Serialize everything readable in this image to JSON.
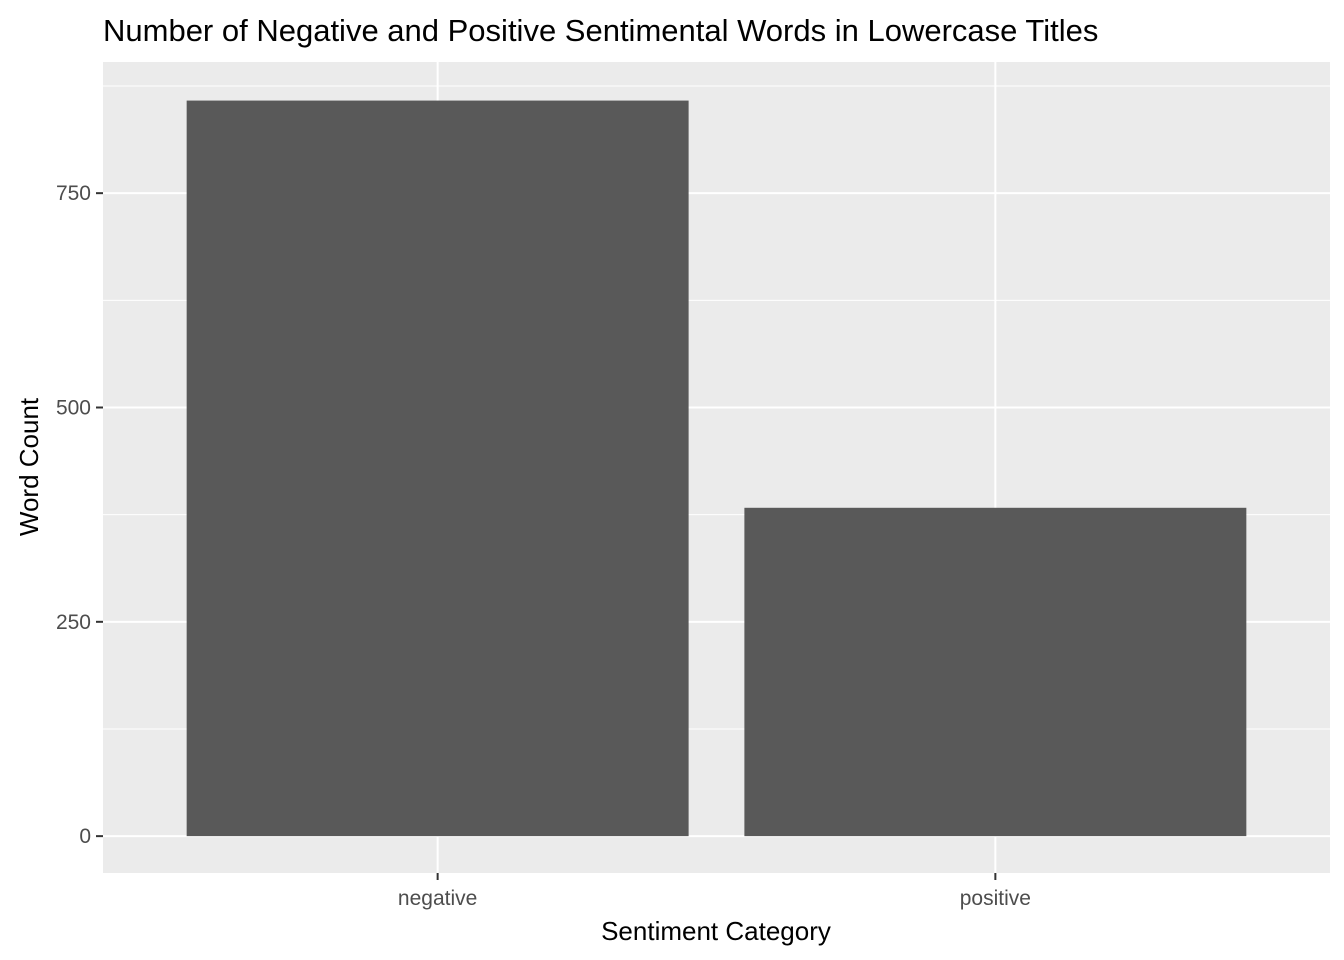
{
  "chart_data": {
    "type": "bar",
    "title": "Number of Negative and Positive Sentimental Words in Lowercase Titles",
    "xlabel": "Sentiment Category",
    "ylabel": "Word Count",
    "categories": [
      "negative",
      "positive"
    ],
    "values": [
      858,
      383
    ],
    "ylim": [
      -43,
      903
    ],
    "yticks": [
      0,
      250,
      500,
      750
    ],
    "ytick_labels": [
      "0",
      "250",
      "500",
      "750"
    ],
    "grid": true,
    "colors": {
      "panel": "#ebebeb",
      "grid": "#ffffff",
      "bar": "#595959",
      "tick": "#333333"
    }
  }
}
